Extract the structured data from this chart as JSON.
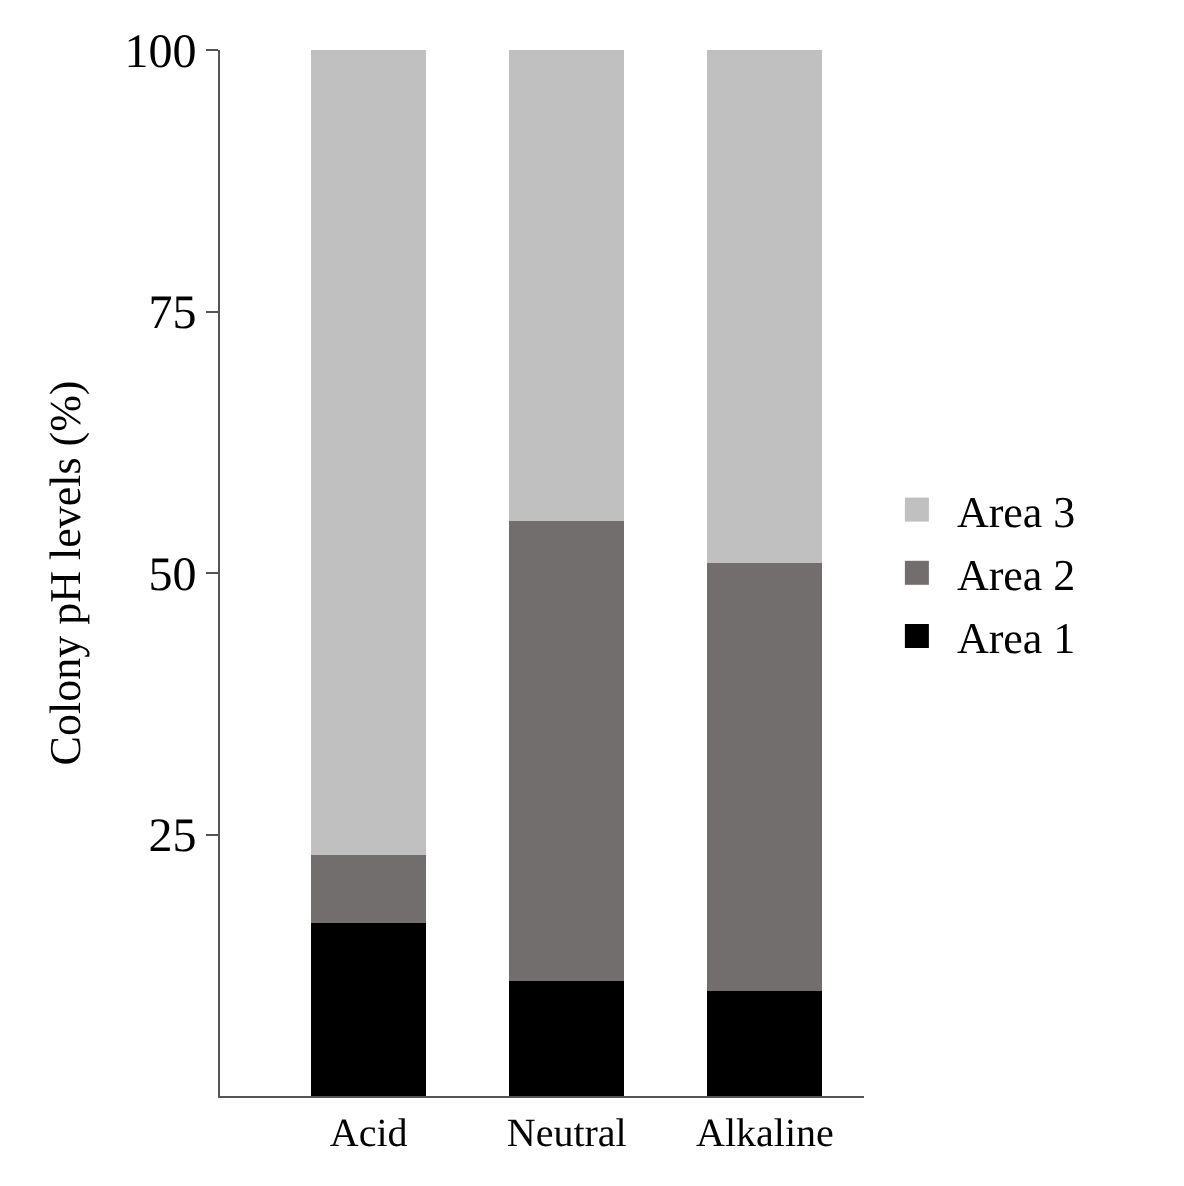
{
  "chart_data": {
    "type": "bar",
    "stacked": true,
    "ylabel": "Colony pH levels (%)",
    "categories": [
      "Acid",
      "Neutral",
      "Alkaline"
    ],
    "series": [
      {
        "name": "Area 1",
        "color": "#000000",
        "values": [
          16.5,
          11,
          10
        ]
      },
      {
        "name": "Area 2",
        "color": "#736e6e",
        "values": [
          6.5,
          44,
          41
        ]
      },
      {
        "name": "Area 3",
        "color": "#c0c0c0",
        "values": [
          77,
          45,
          49
        ]
      }
    ],
    "ylim": [
      0,
      100
    ],
    "yticks": [
      25,
      50,
      75,
      100
    ],
    "legend": "right"
  }
}
